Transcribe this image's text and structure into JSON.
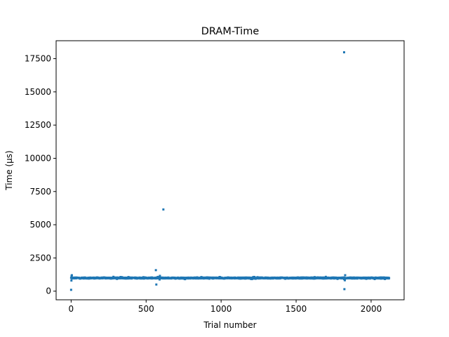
{
  "chart_data": {
    "type": "scatter",
    "title": "DRAM-Time",
    "xlabel": "Trial number",
    "ylabel": "Time (µs)",
    "xlim": [
      -100,
      2220
    ],
    "ylim": [
      -650,
      18850
    ],
    "xticks": [
      0,
      500,
      1000,
      1500,
      2000
    ],
    "yticks": [
      0,
      2500,
      5000,
      7500,
      10000,
      12500,
      15000,
      17500
    ],
    "grid": false,
    "legend": "none",
    "color": "#1f77b4",
    "band": {
      "x_start": 0,
      "x_end": 2120,
      "y_low": 900,
      "y_high": 1080,
      "typical": 990
    },
    "outliers": [
      {
        "x": 0,
        "y": 100
      },
      {
        "x": 2,
        "y": 800
      },
      {
        "x": 3,
        "y": 1150
      },
      {
        "x": 5,
        "y": 1200
      },
      {
        "x": 565,
        "y": 1580
      },
      {
        "x": 568,
        "y": 500
      },
      {
        "x": 590,
        "y": 880
      },
      {
        "x": 592,
        "y": 1150
      },
      {
        "x": 615,
        "y": 6150
      },
      {
        "x": 1820,
        "y": 17980
      },
      {
        "x": 1822,
        "y": 150
      },
      {
        "x": 1825,
        "y": 820
      },
      {
        "x": 1827,
        "y": 1200
      }
    ]
  }
}
